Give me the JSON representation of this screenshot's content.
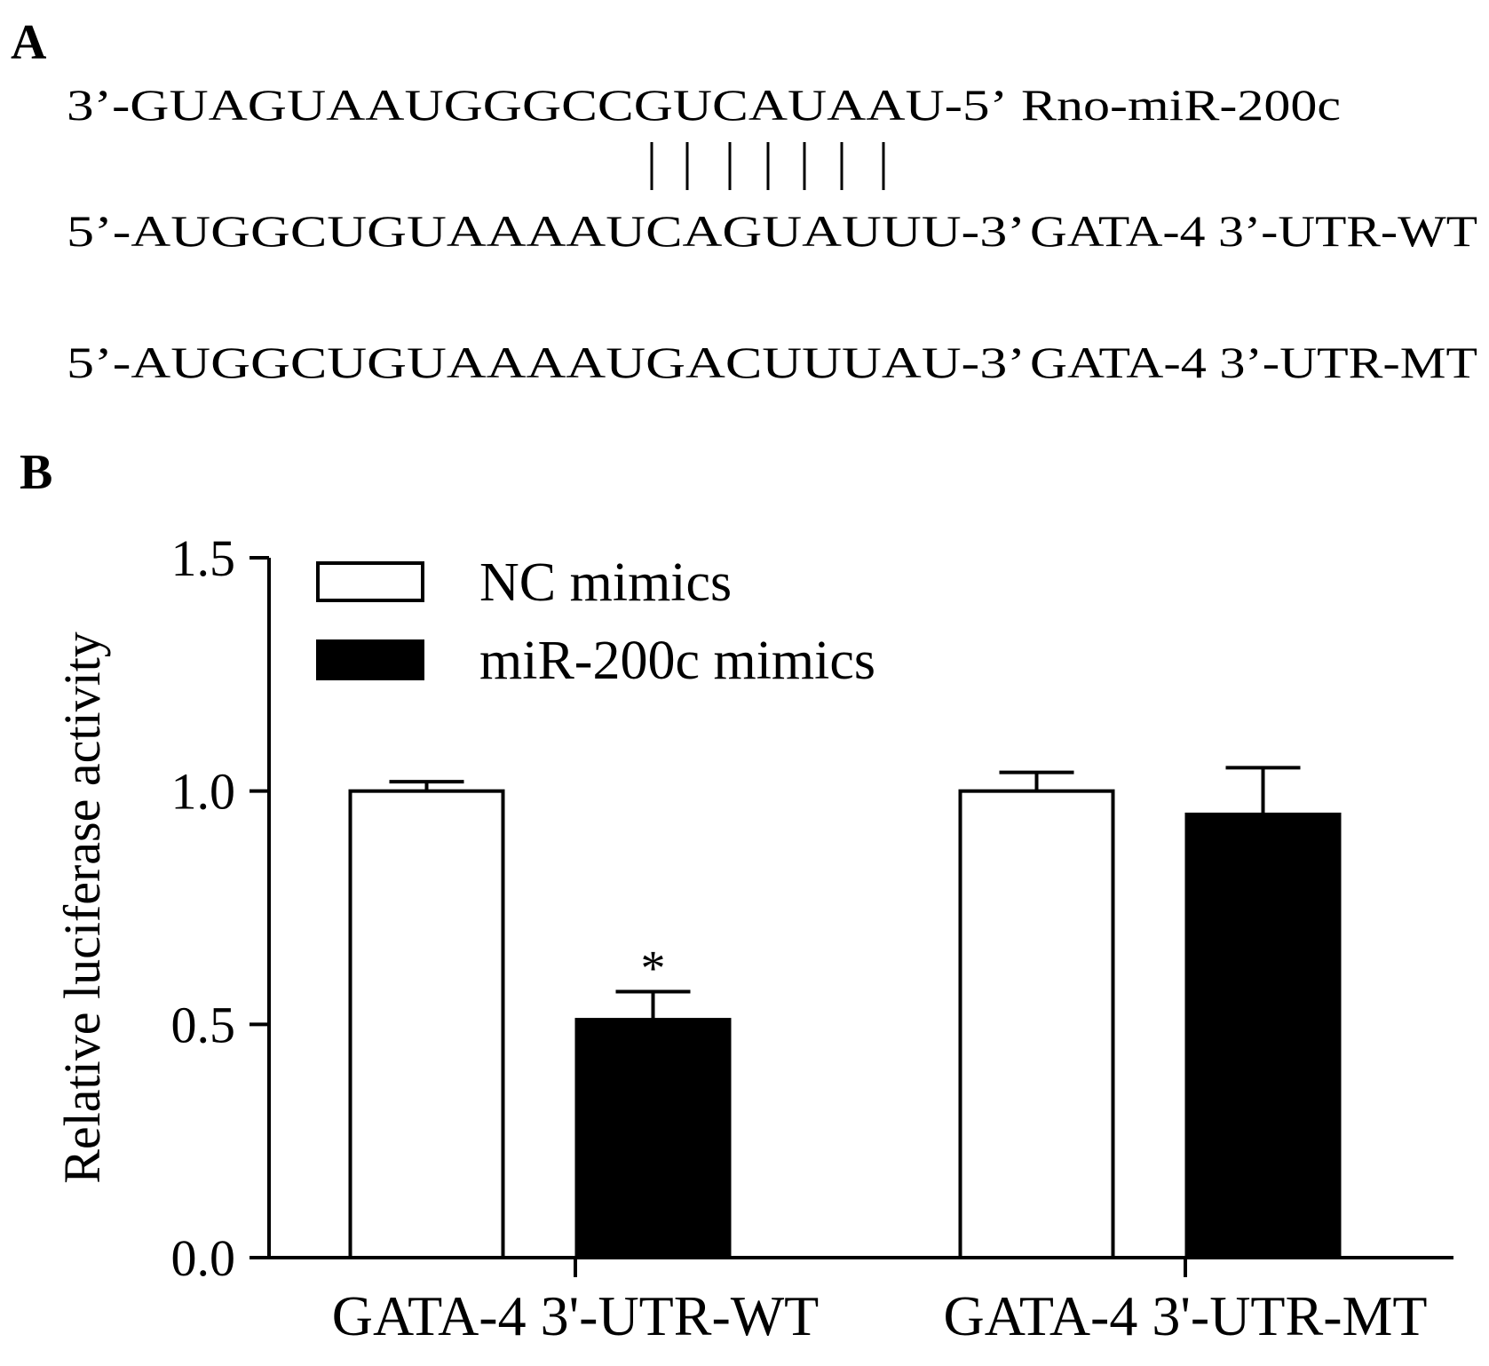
{
  "panel_a": {
    "label": "A",
    "mirna": {
      "sequence": "3’-GUAGUAAUGGGCCGUCAUAAU-5’",
      "name": "Rno-miR-200c"
    },
    "wt": {
      "sequence": "5’-AUGGCUGUAAAAUCAGUAUUU-3’",
      "name": "GATA-4 3’-UTR-WT"
    },
    "mt": {
      "sequence": "5’-AUGGCUGUAAAAUGACUUUAU-3’",
      "name": "GATA-4 3’-UTR-MT"
    }
  },
  "panel_b_label": "B",
  "chart_data": {
    "type": "bar",
    "ylabel": "Relative luciferase activity",
    "categories": [
      "GATA-4 3'-UTR-WT",
      "GATA-4 3'-UTR-MT"
    ],
    "series": [
      {
        "name": "NC mimics",
        "color": "#ffffff",
        "values": [
          1.0,
          1.0
        ],
        "errors": [
          0.02,
          0.04
        ]
      },
      {
        "name": "miR-200c mimics",
        "color": "#000000",
        "values": [
          0.51,
          0.95
        ],
        "errors": [
          0.06,
          0.1
        ]
      }
    ],
    "annotations": [
      {
        "text": "*"
      }
    ],
    "ylim": [
      0,
      1.5
    ],
    "yticks": [
      {
        "value": 0,
        "label": "0.0"
      },
      {
        "value": 0.5,
        "label": "0.5"
      },
      {
        "value": 1,
        "label": "1.0"
      },
      1.5
    ],
    "legend": "top-left"
  }
}
